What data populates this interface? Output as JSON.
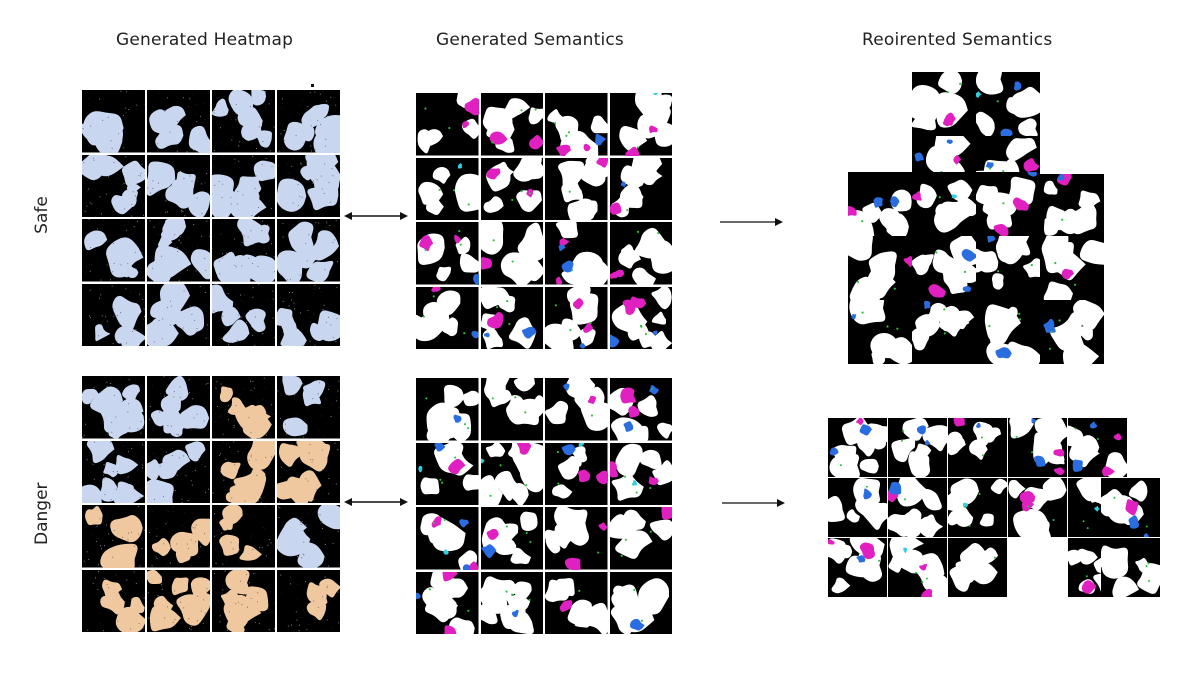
{
  "columns": {
    "heatmap": "Generated Heatmap",
    "semantics": "Generated Semantics",
    "reoriented": "Reoirented Semantics"
  },
  "rows": {
    "safe": "Safe",
    "danger": "Danger"
  },
  "colors": {
    "background": "#000000",
    "safe_heat": "#c8d6f0",
    "danger_heat": "#f0c8a0",
    "danger_heat_alt": "#c8d6f0",
    "free": "#ffffff",
    "magenta": "#e020c0",
    "blue": "#2a6de0",
    "cyan": "#30d0e0",
    "green": "#30c040"
  }
}
